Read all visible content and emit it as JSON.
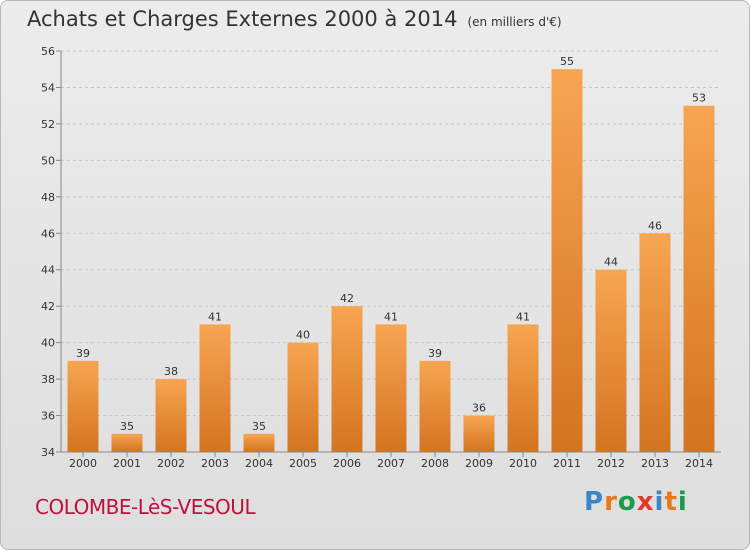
{
  "title": "Achats et Charges Externes 2000 à 2014",
  "unit": "(en milliers d'€)",
  "commune": "COLOMBE-LèS-VESOUL",
  "logo": {
    "letters": [
      "P",
      "r",
      "o",
      "x",
      "i",
      "t",
      "i"
    ],
    "colors": [
      "#3a86c8",
      "#e8781a",
      "#1e9a48",
      "#e23a2a",
      "#3a86c8",
      "#e8781a",
      "#1e9a48"
    ]
  },
  "colors": {
    "bar_light": "#f7a552",
    "bar_dark": "#d4741f",
    "grid": "#c8c8c8",
    "axis_text": "#333333"
  },
  "chart_data": {
    "type": "bar",
    "categories": [
      "2000",
      "2001",
      "2002",
      "2003",
      "2004",
      "2005",
      "2006",
      "2007",
      "2008",
      "2009",
      "2010",
      "2011",
      "2012",
      "2013",
      "2014"
    ],
    "values": [
      39,
      35,
      38,
      41,
      35,
      40,
      42,
      41,
      39,
      36,
      41,
      55,
      44,
      46,
      53
    ],
    "ylim": [
      34,
      56
    ],
    "yticks": [
      34,
      36,
      38,
      40,
      42,
      44,
      46,
      48,
      50,
      52,
      54,
      56
    ],
    "title": "Achats et Charges Externes 2000 à 2014",
    "xlabel": "",
    "ylabel": ""
  }
}
